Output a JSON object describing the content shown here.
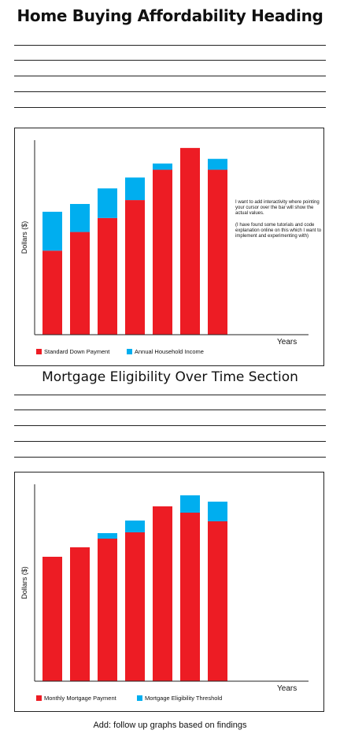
{
  "page": {
    "heading1": "Home Buying Affordability Heading",
    "heading2": "Mortgage Eligibility Over Time Section",
    "footer_note": "Add: follow up graphs based on findings",
    "note_para1": "I want to add interactivity where pointing your cursor over the bar will show the actual values.",
    "note_para2": "(I have found some tutorials and code explanation online on this which I want to implement and experimenting with)"
  },
  "colors": {
    "red": "#ed1c24",
    "blue": "#00aeef",
    "axis": "#222222"
  },
  "chart_data": [
    {
      "type": "bar",
      "stacked": true,
      "categories": [
        "",
        "",
        "",
        "",
        "",
        "",
        ""
      ],
      "series": [
        {
          "name": "Standard Down Payment",
          "color": "#ed1c24",
          "values": [
            108,
            132,
            150,
            173,
            212,
            240,
            212
          ]
        },
        {
          "name": "Annual Household Income",
          "color": "#00aeef",
          "values": [
            50,
            36,
            38,
            29,
            8,
            0,
            14
          ]
        }
      ],
      "xlabel": "Years",
      "ylabel": "Dollars ($)",
      "ylim": [
        0,
        250
      ],
      "legend": "bottom-left",
      "grid": false
    },
    {
      "type": "bar",
      "stacked": true,
      "categories": [
        "",
        "",
        "",
        "",
        "",
        "",
        ""
      ],
      "series": [
        {
          "name": "Monthly Mortgage Payment",
          "color": "#ed1c24",
          "values": [
            158,
            170,
            181,
            189,
            222,
            214,
            203
          ]
        },
        {
          "name": "Mortgage Eligibility Threshold",
          "color": "#00aeef",
          "values": [
            0,
            0,
            7,
            15,
            0,
            22,
            25
          ]
        }
      ],
      "xlabel": "Years",
      "ylabel": "Dollars ($)",
      "ylim": [
        0,
        250
      ],
      "legend": "bottom-left",
      "grid": false
    }
  ]
}
